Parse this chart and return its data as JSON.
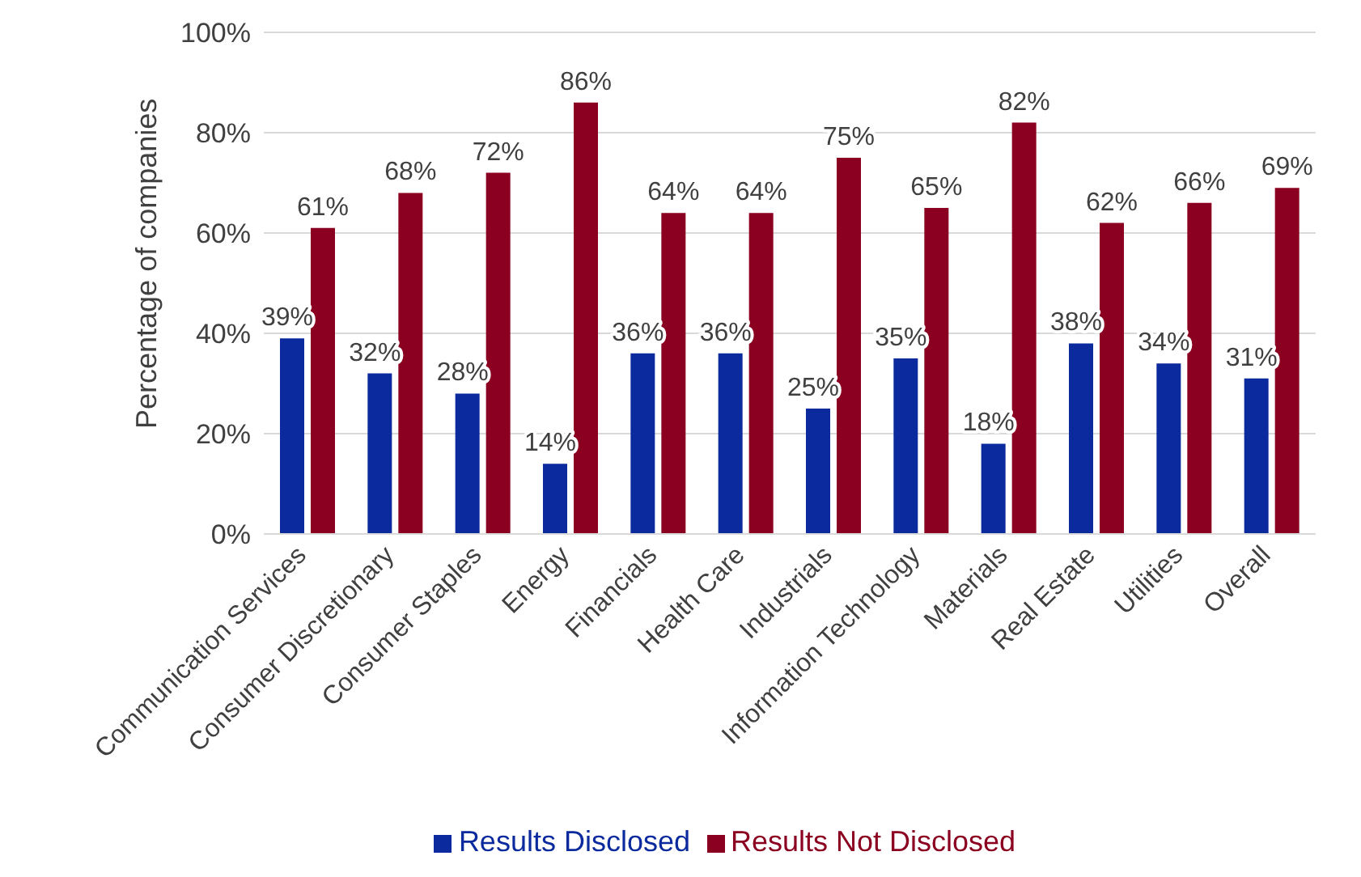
{
  "chart_data": {
    "type": "bar",
    "ylabel": "Percentage of companies",
    "categories": [
      "Communication Services",
      "Consumer Discretionary",
      "Consumer Staples",
      "Energy",
      "Financials",
      "Health Care",
      "Industrials",
      "Information Technology",
      "Materials",
      "Real Estate",
      "Utilities",
      "Overall"
    ],
    "series": [
      {
        "name": "Results Disclosed",
        "color": "#0b2a9e",
        "values": [
          39,
          32,
          28,
          14,
          36,
          36,
          25,
          35,
          18,
          38,
          34,
          31
        ],
        "value_labels": [
          "39%",
          "32%",
          "28%",
          "14%",
          "36%",
          "36%",
          "25%",
          "35%",
          "18%",
          "38%",
          "34%",
          "31%"
        ]
      },
      {
        "name": "Results Not Disclosed",
        "color": "#8b0020",
        "values": [
          61,
          68,
          72,
          86,
          64,
          64,
          75,
          65,
          82,
          62,
          66,
          69
        ],
        "value_labels": [
          "61%",
          "68%",
          "72%",
          "86%",
          "64%",
          "64%",
          "75%",
          "65%",
          "82%",
          "62%",
          "66%",
          "69%"
        ]
      }
    ],
    "ylim": [
      0,
      100
    ],
    "yticks": [
      {
        "value": 0,
        "label": "0%"
      },
      {
        "value": 20,
        "label": "20%"
      },
      {
        "value": 40,
        "label": "40%"
      },
      {
        "value": 60,
        "label": "60%"
      },
      {
        "value": 80,
        "label": "80%"
      },
      {
        "value": 100,
        "label": "100%"
      }
    ],
    "grid": "y",
    "legend": "bottom"
  }
}
